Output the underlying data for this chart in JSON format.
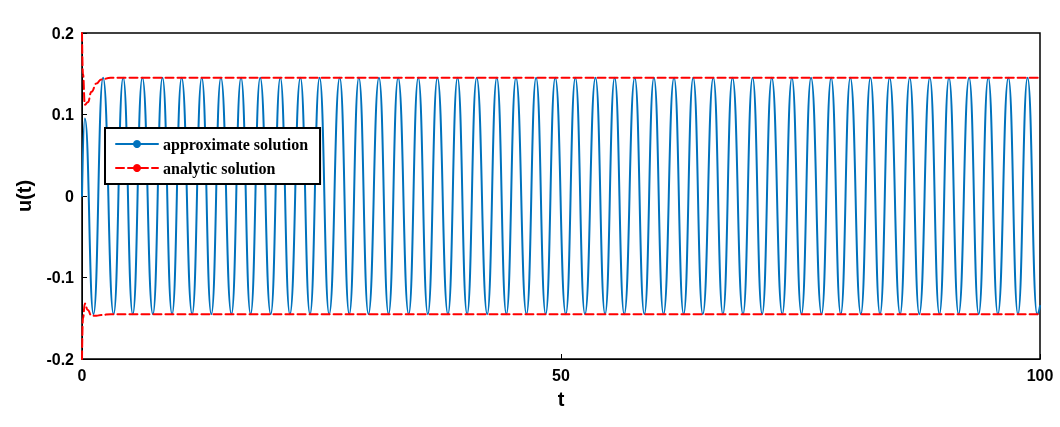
{
  "chart_data": {
    "type": "line",
    "xlabel": "t",
    "ylabel": "u(t)",
    "xlim": [
      0,
      100
    ],
    "xticks": [
      0,
      50,
      100
    ],
    "ylim": [
      -0.2,
      0.2
    ],
    "yticks": [
      -0.2,
      -0.1,
      0,
      0.1,
      0.2
    ],
    "grid": false,
    "legend": "top left",
    "marker": "none",
    "series": [
      {
        "name": "approximate solution",
        "color": "#0072bd",
        "line_style": "solid",
        "x": [
          0,
          0.3,
          1.2,
          2.2,
          3.3,
          4.3,
          5.3,
          6.3,
          7.4,
          8.4,
          9.4,
          10.4,
          11.5,
          12.5,
          13.5,
          14.5,
          15.6,
          16.6,
          17.6,
          18.6,
          19.7,
          20.7,
          21.7,
          22.8,
          23.8,
          24.8,
          25.8,
          26.9,
          27.9,
          28.9,
          29.9,
          31.0,
          32.0,
          33.0,
          34.1,
          35.1,
          36.1,
          37.1,
          38.2,
          39.2,
          40.2,
          41.2,
          42.3,
          43.3,
          44.3,
          45.3,
          46.4,
          47.4,
          48.4,
          49.4,
          50.5,
          51.5,
          52.5,
          53.6,
          54.6,
          55.6,
          56.6,
          57.7,
          58.7,
          59.7,
          60.7,
          61.8,
          62.8,
          63.8,
          64.8,
          65.9,
          66.9,
          67.9,
          69.0,
          70.0,
          71.0,
          72.0,
          73.1,
          74.1,
          75.1,
          76.1,
          77.2,
          78.2,
          79.2,
          80.2,
          81.3,
          82.3,
          83.3,
          84.3,
          85.4,
          86.4,
          87.4,
          88.5,
          89.5,
          90.5,
          91.5,
          92.6,
          93.6,
          94.6,
          95.6,
          96.7,
          97.7,
          98.7,
          99.7,
          100
        ],
        "values": [
          0,
          0.095,
          -0.145,
          0.145,
          -0.145,
          0.145,
          -0.145,
          0.145,
          -0.145,
          0.145,
          -0.145,
          0.145,
          -0.145,
          0.145,
          -0.145,
          0.145,
          -0.145,
          0.145,
          -0.145,
          0.145,
          -0.145,
          0.145,
          -0.145,
          0.145,
          -0.145,
          0.145,
          -0.145,
          0.145,
          -0.145,
          0.145,
          -0.145,
          0.145,
          -0.145,
          0.145,
          -0.145,
          0.145,
          -0.145,
          0.145,
          -0.145,
          0.145,
          -0.145,
          0.145,
          -0.145,
          0.145,
          -0.145,
          0.145,
          -0.145,
          0.145,
          -0.145,
          0.145,
          -0.145,
          0.145,
          -0.145,
          0.145,
          -0.145,
          0.145,
          -0.145,
          0.145,
          -0.145,
          0.145,
          -0.145,
          0.145,
          -0.145,
          0.145,
          -0.145,
          0.145,
          -0.145,
          0.145,
          -0.145,
          0.145,
          -0.145,
          0.145,
          -0.145,
          0.145,
          -0.145,
          0.145,
          -0.145,
          0.145,
          -0.145,
          0.145,
          -0.145,
          0.145,
          -0.145,
          0.145,
          -0.145,
          0.145,
          -0.145,
          0.145,
          -0.145,
          0.145,
          -0.145,
          0.145,
          -0.145,
          0.145,
          -0.145,
          0.145,
          -0.145,
          0.145,
          -0.145,
          -0.135
        ]
      },
      {
        "name": "analytic solution",
        "color": "#ff0000",
        "line_style": "dashed",
        "x": [
          0,
          0.1,
          0.3,
          0.6,
          1,
          1.5,
          2,
          3,
          100
        ],
        "values": [
          0.2,
          0.15,
          0.112,
          0.115,
          0.128,
          0.138,
          0.143,
          0.145,
          0.145
        ]
      },
      {
        "color": "#ff0000",
        "line_style": "dashed",
        "x": [
          0,
          0.1,
          0.3,
          0.6,
          1,
          1.5,
          2,
          3,
          100
        ],
        "values": [
          -0.2,
          -0.15,
          -0.132,
          -0.14,
          -0.147,
          -0.147,
          -0.146,
          -0.145,
          -0.145
        ]
      }
    ]
  }
}
